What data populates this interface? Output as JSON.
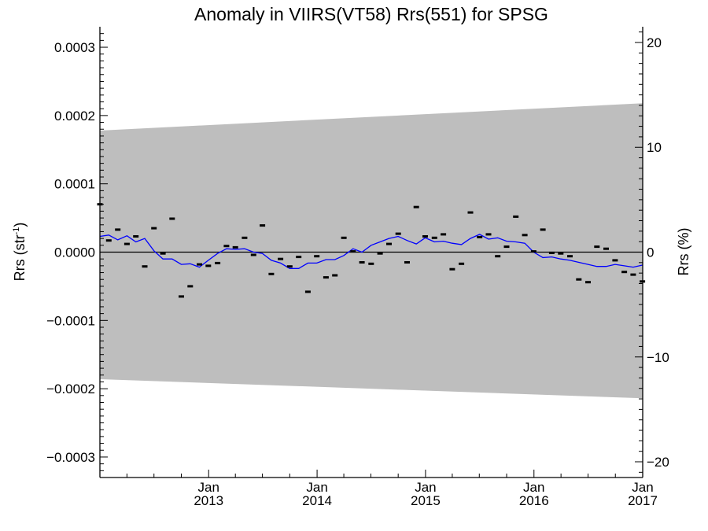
{
  "chart_data": {
    "type": "scatter",
    "title": "Anomaly in VIIRS(VT58) Rrs(551) for SPSG",
    "ylabel_left": "Rrs (str",
    "ylabel_left_sup": "-1",
    "ylabel_left_close": ")",
    "ylabel_right": "Rrs (%)",
    "xlim": [
      "2012-01-01",
      "2017-01-01"
    ],
    "ylim": [
      -0.00033,
      0.00033
    ],
    "ylim_right": [
      -21.5,
      21.5
    ],
    "left_ticks": [
      {
        "value": 0.0003,
        "label": "0.0003"
      },
      {
        "value": 0.0002,
        "label": "0.0002"
      },
      {
        "value": 0.0001,
        "label": "0.0001"
      },
      {
        "value": 0.0,
        "label": "0.0000"
      },
      {
        "value": -0.0001,
        "label": "−0.0001"
      },
      {
        "value": -0.0002,
        "label": "−0.0002"
      },
      {
        "value": -0.0003,
        "label": "−0.0003"
      }
    ],
    "right_ticks": [
      {
        "value": 20,
        "label": "20"
      },
      {
        "value": 10,
        "label": "10"
      },
      {
        "value": 0,
        "label": "0"
      },
      {
        "value": -10,
        "label": "−10"
      },
      {
        "value": -20,
        "label": "−20"
      }
    ],
    "x_ticks": [
      {
        "date": "2013-01-01",
        "month": "Jan",
        "year": "2013"
      },
      {
        "date": "2014-01-01",
        "month": "Jan",
        "year": "2014"
      },
      {
        "date": "2015-01-01",
        "month": "Jan",
        "year": "2015"
      },
      {
        "date": "2016-01-01",
        "month": "Jan",
        "year": "2016"
      },
      {
        "date": "2017-01-01",
        "month": "Jan",
        "year": "2017"
      }
    ],
    "uncertainty_band": {
      "x": [
        "2012-01-01",
        "2017-01-01"
      ],
      "upper": [
        0.000178,
        0.000218
      ],
      "lower": [
        -0.000186,
        -0.000214
      ],
      "color": "#bebebe"
    },
    "zero_line": 0,
    "points": {
      "x": [
        "2012-01-01",
        "2012-01-31",
        "2012-03-01",
        "2012-04-01",
        "2012-05-01",
        "2012-05-31",
        "2012-07-01",
        "2012-07-31",
        "2012-08-31",
        "2012-10-01",
        "2012-10-31",
        "2012-12-01",
        "2012-12-31",
        "2013-01-31",
        "2013-03-02",
        "2013-04-01",
        "2013-05-02",
        "2013-06-01",
        "2013-07-01",
        "2013-07-31",
        "2013-08-31",
        "2013-10-01",
        "2013-10-31",
        "2013-12-01",
        "2013-12-31",
        "2014-01-31",
        "2014-03-02",
        "2014-04-01",
        "2014-05-02",
        "2014-06-01",
        "2014-07-02",
        "2014-08-01",
        "2014-08-31",
        "2014-10-01",
        "2014-10-31",
        "2014-12-01",
        "2014-12-31",
        "2015-01-31",
        "2015-03-02",
        "2015-04-01",
        "2015-05-02",
        "2015-06-01",
        "2015-07-02",
        "2015-08-01",
        "2015-09-01",
        "2015-10-01",
        "2015-11-01",
        "2015-12-01",
        "2015-12-31",
        "2016-01-31",
        "2016-03-01",
        "2016-03-31",
        "2016-05-01",
        "2016-05-31",
        "2016-07-01",
        "2016-07-31",
        "2016-08-31",
        "2016-09-30",
        "2016-10-31",
        "2016-11-30",
        "2016-12-31"
      ],
      "y": [
        7e-05,
        1.7e-05,
        3.3e-05,
        1.2e-05,
        2.3e-05,
        -2.1e-05,
        3.5e-05,
        -2e-06,
        4.9e-05,
        -6.5e-05,
        -5e-05,
        -1.8e-05,
        -2e-05,
        -1.6e-05,
        9e-06,
        7e-06,
        2.1e-05,
        -4e-06,
        3.9e-05,
        -3.2e-05,
        -1e-05,
        -2.1e-05,
        -7e-06,
        -5.8e-05,
        -6e-06,
        -3.7e-05,
        -3.4e-05,
        2.1e-05,
        1e-06,
        -1.5e-05,
        -1.7e-05,
        -2e-06,
        1.2e-05,
        2.7e-05,
        -1.5e-05,
        6.6e-05,
        2.3e-05,
        2.1e-05,
        2.6e-05,
        -2.5e-05,
        -1.7e-05,
        5.8e-05,
        2.2e-05,
        2.6e-05,
        -6e-06,
        8e-06,
        5.2e-05,
        2.5e-05,
        1e-06,
        3.3e-05,
        -1e-06,
        -2e-06,
        -6e-06,
        -4e-05,
        -4.4e-05,
        8e-06,
        5e-06,
        -1.2e-05,
        -2.9e-05,
        -3.3e-05,
        -4.3e-05
      ]
    },
    "running_mean": {
      "color": "#0000ff",
      "x": [
        "2012-01-01",
        "2012-01-31",
        "2012-03-01",
        "2012-04-01",
        "2012-05-01",
        "2012-05-31",
        "2012-07-01",
        "2012-07-31",
        "2012-08-31",
        "2012-10-01",
        "2012-10-31",
        "2012-12-01",
        "2012-12-31",
        "2013-01-31",
        "2013-03-02",
        "2013-04-01",
        "2013-05-02",
        "2013-06-01",
        "2013-07-01",
        "2013-07-31",
        "2013-08-31",
        "2013-10-01",
        "2013-10-31",
        "2013-12-01",
        "2013-12-31",
        "2014-01-31",
        "2014-03-02",
        "2014-04-01",
        "2014-05-02",
        "2014-06-01",
        "2014-07-02",
        "2014-08-01",
        "2014-08-31",
        "2014-10-01",
        "2014-10-31",
        "2014-12-01",
        "2014-12-31",
        "2015-01-31",
        "2015-03-02",
        "2015-04-01",
        "2015-05-02",
        "2015-06-01",
        "2015-07-02",
        "2015-08-01",
        "2015-09-01",
        "2015-10-01",
        "2015-11-01",
        "2015-12-01",
        "2015-12-31",
        "2016-01-31",
        "2016-03-01",
        "2016-03-31",
        "2016-05-01",
        "2016-05-31",
        "2016-07-01",
        "2016-07-31",
        "2016-08-31",
        "2016-09-30",
        "2016-10-31",
        "2016-11-30",
        "2016-12-31"
      ],
      "y": [
        2.3e-05,
        2.5e-05,
        1.8e-05,
        2.4e-05,
        1.5e-05,
        2e-05,
        2e-06,
        -1e-05,
        -1e-05,
        -1.8e-05,
        -1.7e-05,
        -2.2e-05,
        -1.2e-05,
        -2e-06,
        5e-06,
        4e-06,
        5e-06,
        0.0,
        -2e-06,
        -1.2e-05,
        -1.6e-05,
        -2.4e-05,
        -2.4e-05,
        -1.6e-05,
        -1.6e-05,
        -1.1e-05,
        -1.1e-05,
        -5e-06,
        5e-06,
        0.0,
        1e-05,
        1.5e-05,
        2e-05,
        2.3e-05,
        1.7e-05,
        1.2e-05,
        2.1e-05,
        1.5e-05,
        1.6e-05,
        1.3e-05,
        1.1e-05,
        2e-05,
        2.6e-05,
        1.9e-05,
        2.1e-05,
        1.6e-05,
        1.5e-05,
        1.3e-05,
        0.0,
        -8e-06,
        -7e-06,
        -1e-05,
        -1.2e-05,
        -1.5e-05,
        -1.8e-05,
        -2.1e-05,
        -2.1e-05,
        -1.8e-05,
        -2e-05,
        -2.2e-05,
        -1.9e-05
      ]
    }
  }
}
